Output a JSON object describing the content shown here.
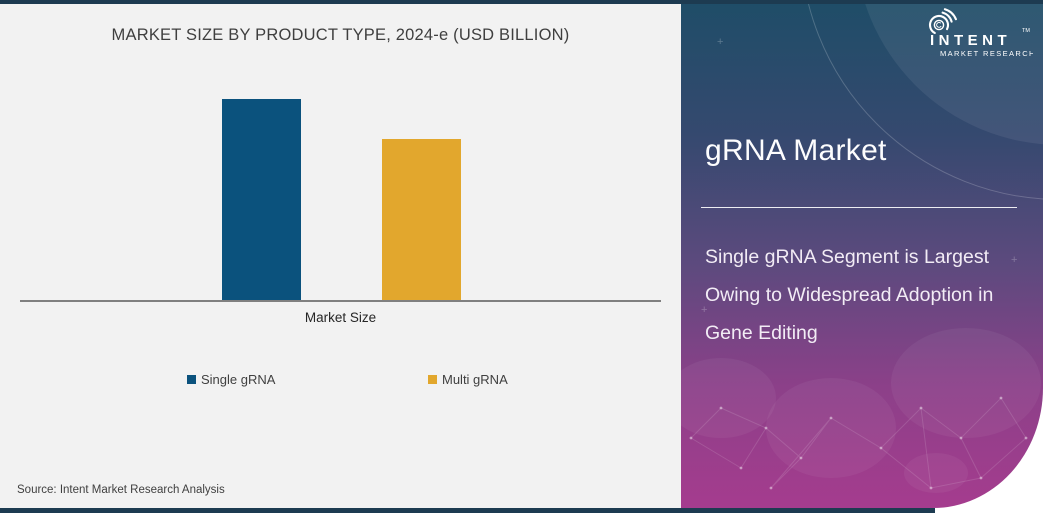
{
  "frame": {
    "bar_color": "#1D3B51"
  },
  "chart_panel": {
    "title": "MARKET SIZE BY PRODUCT TYPE, 2024-e (USD BILLION)",
    "x_axis_label": "Market Size",
    "legend": [
      {
        "label": "Single gRNA",
        "color": "#0B527D"
      },
      {
        "label": "Multi gRNA",
        "color": "#E2A72D"
      }
    ],
    "source": "Source: Intent Market Research Analysis",
    "background": "#F2F2F2",
    "axis_color": "#808080"
  },
  "chart_data": {
    "type": "bar",
    "title": "MARKET SIZE BY PRODUCT TYPE, 2024-e (USD BILLION)",
    "categories": [
      "Single gRNA",
      "Multi gRNA"
    ],
    "values": [
      100,
      80
    ],
    "value_note": "no numeric axis labels shown; values are relative estimates from bar heights (Single gRNA ~1.25x Multi gRNA)",
    "xlabel": "Market Size",
    "ylabel": "",
    "ylim": [
      0,
      125
    ],
    "grid": false,
    "legend_position": "bottom",
    "bar_colors": [
      "#0B527D",
      "#E2A72D"
    ]
  },
  "side_panel": {
    "logo": {
      "brand": "INTENT",
      "trademark": "TM",
      "subtitle": "MARKET RESEARCH"
    },
    "title": "gRNA Market",
    "description": "Single gRNA Segment is Largest Owing to Widespread Adoption in Gene Editing",
    "gradient": [
      "#1F4D68",
      "#35496F",
      "#5D4A7E",
      "#8C4089",
      "#A53C8E"
    ]
  }
}
